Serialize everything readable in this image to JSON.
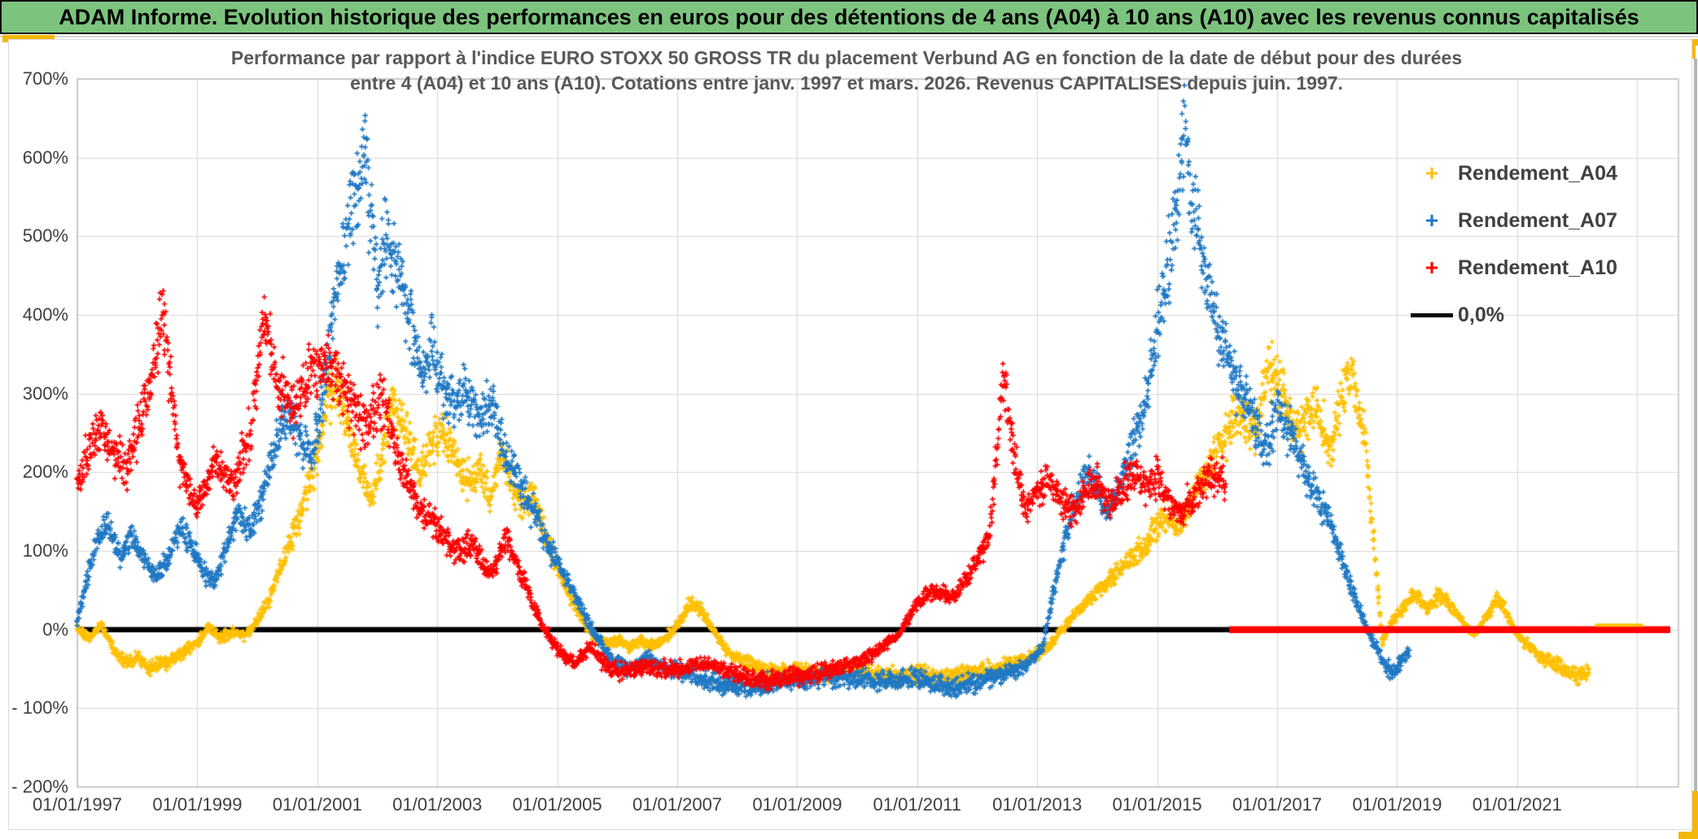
{
  "banner": {
    "title": "ADAM Informe. Evolution historique des performances en euros pour des détentions de 4 ans (A04) à 10 ans (A10) avec les revenus connus capitalisés"
  },
  "palette": {
    "banner_green": "#7CC47E",
    "accent_gold": "#F2B70A",
    "grid_gray": "#D9D9D9",
    "border_gray": "#BFBFBF",
    "text_gray": "#3F3F3F",
    "title_gray": "#595959"
  },
  "chart_data": {
    "type": "scatter",
    "title_line1": "Performance par rapport à l'indice EURO STOXX 50 GROSS TR  du placement Verbund AG en fonction de la date de début pour des durées",
    "title_line2": "entre 4 (A04) et 10 ans (A10). Cotations entre janv. 1997 et mars. 2026. Revenus CAPITALISES depuis juin. 1997.",
    "grid": true,
    "legend_position": "inside-right-top",
    "y_axis": {
      "unit": "%",
      "min": -200,
      "max": 700,
      "step": 100,
      "tick_labels": [
        "700%",
        "600%",
        "500%",
        "400%",
        "300%",
        "200%",
        "100%",
        "0%",
        "- 100%",
        "- 200%"
      ]
    },
    "x_axis": {
      "first_year": 1997,
      "years_per_tick": 2,
      "axis_end_year": 2023.7,
      "tick_labels": [
        "01/01/1997",
        "01/01/1999",
        "01/01/2001",
        "01/01/2003",
        "01/01/2005",
        "01/01/2007",
        "01/01/2009",
        "01/01/2011",
        "01/01/2013",
        "01/01/2015",
        "01/01/2017",
        "01/01/2019",
        "01/01/2021"
      ],
      "gridline_years": [
        1997,
        1999,
        2001,
        2003,
        2005,
        2007,
        2009,
        2011,
        2013,
        2015,
        2017,
        2019,
        2021,
        2023
      ]
    },
    "legend": [
      {
        "label": "Rendement_A04",
        "marker": "plus-icon",
        "color": "#FFC000"
      },
      {
        "label": "Rendement_A07",
        "marker": "plus-icon",
        "color": "#1F78C4"
      },
      {
        "label": "Rendement_A10",
        "marker": "plus-icon",
        "color": "#FF0000"
      },
      {
        "label": "0,0%",
        "marker": "line-icon",
        "color": "#000000"
      }
    ],
    "zero_line": {
      "label": "0,0%",
      "color": "#000000",
      "value": 0,
      "start": 1997.0,
      "end": 2023.55
    },
    "series": [
      {
        "name": "Rendement_A04",
        "color": "#FFC000",
        "marker": "+",
        "zero_placeholder": {
          "start": 2022.3,
          "end": 2023.1
        },
        "keypoints": [
          [
            1997.0,
            2
          ],
          [
            1997.2,
            -12
          ],
          [
            1997.4,
            6
          ],
          [
            1997.6,
            -25
          ],
          [
            1997.8,
            -42
          ],
          [
            1998.0,
            -35
          ],
          [
            1998.2,
            -50
          ],
          [
            1998.5,
            -40
          ],
          [
            1998.8,
            -28
          ],
          [
            1999.0,
            -15
          ],
          [
            1999.2,
            4
          ],
          [
            1999.4,
            -12
          ],
          [
            1999.6,
            -2
          ],
          [
            1999.8,
            -8
          ],
          [
            2000.0,
            12
          ],
          [
            2000.2,
            40
          ],
          [
            2000.4,
            80
          ],
          [
            2000.6,
            125
          ],
          [
            2000.8,
            165
          ],
          [
            2001.0,
            225
          ],
          [
            2001.2,
            295
          ],
          [
            2001.35,
            308
          ],
          [
            2001.5,
            255
          ],
          [
            2001.7,
            205
          ],
          [
            2001.9,
            162
          ],
          [
            2002.1,
            230
          ],
          [
            2002.25,
            295
          ],
          [
            2002.4,
            268
          ],
          [
            2002.55,
            235
          ],
          [
            2002.7,
            200
          ],
          [
            2002.9,
            232
          ],
          [
            2003.1,
            252
          ],
          [
            2003.3,
            222
          ],
          [
            2003.5,
            185
          ],
          [
            2003.7,
            205
          ],
          [
            2003.9,
            165
          ],
          [
            2004.05,
            230
          ],
          [
            2004.2,
            195
          ],
          [
            2004.4,
            160
          ],
          [
            2004.6,
            172
          ],
          [
            2004.8,
            120
          ],
          [
            2005.0,
            80
          ],
          [
            2005.2,
            45
          ],
          [
            2005.4,
            15
          ],
          [
            2005.6,
            -8
          ],
          [
            2005.8,
            -18
          ],
          [
            2006.0,
            -12
          ],
          [
            2006.2,
            -22
          ],
          [
            2006.4,
            -14
          ],
          [
            2006.6,
            -20
          ],
          [
            2006.8,
            -12
          ],
          [
            2007.0,
            5
          ],
          [
            2007.2,
            32
          ],
          [
            2007.4,
            25
          ],
          [
            2007.6,
            0
          ],
          [
            2007.8,
            -25
          ],
          [
            2008.0,
            -38
          ],
          [
            2008.3,
            -48
          ],
          [
            2008.6,
            -55
          ],
          [
            2009.0,
            -50
          ],
          [
            2009.4,
            -56
          ],
          [
            2009.8,
            -50
          ],
          [
            2010.2,
            -56
          ],
          [
            2010.6,
            -62
          ],
          [
            2011.0,
            -56
          ],
          [
            2011.4,
            -60
          ],
          [
            2011.8,
            -55
          ],
          [
            2012.2,
            -52
          ],
          [
            2012.6,
            -42
          ],
          [
            2013.0,
            -32
          ],
          [
            2013.3,
            -12
          ],
          [
            2013.6,
            18
          ],
          [
            2014.0,
            48
          ],
          [
            2014.4,
            78
          ],
          [
            2014.8,
            108
          ],
          [
            2015.1,
            148
          ],
          [
            2015.35,
            128
          ],
          [
            2015.6,
            168
          ],
          [
            2015.85,
            205
          ],
          [
            2016.1,
            240
          ],
          [
            2016.3,
            280
          ],
          [
            2016.6,
            250
          ],
          [
            2016.9,
            335
          ],
          [
            2017.1,
            298
          ],
          [
            2017.3,
            255
          ],
          [
            2017.6,
            285
          ],
          [
            2017.9,
            235
          ],
          [
            2018.1,
            300
          ],
          [
            2018.25,
            328
          ],
          [
            2018.45,
            250
          ],
          [
            2018.6,
            120
          ],
          [
            2018.75,
            -15
          ],
          [
            2018.9,
            8
          ],
          [
            2019.1,
            28
          ],
          [
            2019.3,
            45
          ],
          [
            2019.5,
            25
          ],
          [
            2019.7,
            45
          ],
          [
            2019.9,
            30
          ],
          [
            2020.1,
            8
          ],
          [
            2020.3,
            -6
          ],
          [
            2020.5,
            18
          ],
          [
            2020.7,
            40
          ],
          [
            2020.9,
            8
          ],
          [
            2021.1,
            -16
          ],
          [
            2021.4,
            -35
          ],
          [
            2021.7,
            -46
          ],
          [
            2022.0,
            -58
          ],
          [
            2022.2,
            -55
          ]
        ]
      },
      {
        "name": "Rendement_A07",
        "color": "#1F78C4",
        "marker": "+",
        "keypoints": [
          [
            1997.0,
            10
          ],
          [
            1997.15,
            60
          ],
          [
            1997.3,
            105
          ],
          [
            1997.5,
            135
          ],
          [
            1997.7,
            95
          ],
          [
            1997.9,
            120
          ],
          [
            1998.1,
            90
          ],
          [
            1998.3,
            65
          ],
          [
            1998.5,
            90
          ],
          [
            1998.7,
            130
          ],
          [
            1998.9,
            110
          ],
          [
            1999.1,
            75
          ],
          [
            1999.3,
            60
          ],
          [
            1999.5,
            110
          ],
          [
            1999.7,
            148
          ],
          [
            1999.9,
            128
          ],
          [
            2000.1,
            175
          ],
          [
            2000.3,
            235
          ],
          [
            2000.5,
            275
          ],
          [
            2000.7,
            250
          ],
          [
            2000.9,
            225
          ],
          [
            2001.1,
            305
          ],
          [
            2001.3,
            420
          ],
          [
            2001.5,
            500
          ],
          [
            2001.65,
            555
          ],
          [
            2001.79,
            628
          ],
          [
            2001.9,
            520
          ],
          [
            2002.0,
            455
          ],
          [
            2002.15,
            500
          ],
          [
            2002.3,
            465
          ],
          [
            2002.45,
            425
          ],
          [
            2002.6,
            375
          ],
          [
            2002.75,
            325
          ],
          [
            2002.9,
            360
          ],
          [
            2003.1,
            300
          ],
          [
            2003.3,
            285
          ],
          [
            2003.5,
            305
          ],
          [
            2003.7,
            265
          ],
          [
            2003.9,
            285
          ],
          [
            2004.1,
            230
          ],
          [
            2004.3,
            195
          ],
          [
            2004.6,
            150
          ],
          [
            2004.9,
            100
          ],
          [
            2005.2,
            60
          ],
          [
            2005.55,
            5
          ],
          [
            2005.9,
            -38
          ],
          [
            2006.2,
            -52
          ],
          [
            2006.5,
            -35
          ],
          [
            2006.8,
            -48
          ],
          [
            2007.1,
            -55
          ],
          [
            2007.4,
            -62
          ],
          [
            2007.8,
            -70
          ],
          [
            2008.2,
            -74
          ],
          [
            2008.6,
            -68
          ],
          [
            2009.0,
            -64
          ],
          [
            2009.5,
            -60
          ],
          [
            2010.0,
            -62
          ],
          [
            2010.5,
            -66
          ],
          [
            2011.0,
            -60
          ],
          [
            2011.3,
            -70
          ],
          [
            2011.6,
            -74
          ],
          [
            2012.0,
            -66
          ],
          [
            2012.4,
            -58
          ],
          [
            2012.8,
            -48
          ],
          [
            2013.1,
            -20
          ],
          [
            2013.25,
            40
          ],
          [
            2013.4,
            90
          ],
          [
            2013.55,
            140
          ],
          [
            2013.7,
            170
          ],
          [
            2013.85,
            200
          ],
          [
            2014.0,
            185
          ],
          [
            2014.15,
            150
          ],
          [
            2014.3,
            165
          ],
          [
            2014.5,
            210
          ],
          [
            2014.7,
            260
          ],
          [
            2014.85,
            310
          ],
          [
            2015.0,
            380
          ],
          [
            2015.15,
            450
          ],
          [
            2015.3,
            510
          ],
          [
            2015.45,
            625
          ],
          [
            2015.6,
            545
          ],
          [
            2015.75,
            470
          ],
          [
            2015.9,
            420
          ],
          [
            2016.05,
            370
          ],
          [
            2016.2,
            340
          ],
          [
            2016.5,
            285
          ],
          [
            2016.8,
            230
          ],
          [
            2017.0,
            280
          ],
          [
            2017.2,
            250
          ],
          [
            2017.5,
            195
          ],
          [
            2017.8,
            150
          ],
          [
            2018.0,
            110
          ],
          [
            2018.2,
            60
          ],
          [
            2018.4,
            20
          ],
          [
            2018.6,
            -15
          ],
          [
            2018.8,
            -45
          ],
          [
            2018.95,
            -55
          ],
          [
            2019.1,
            -35
          ],
          [
            2019.2,
            -25
          ]
        ]
      },
      {
        "name": "Rendement_A10",
        "color": "#FF0000",
        "marker": "+",
        "zero_placeholder": {
          "start": 2016.2,
          "end": 2023.55
        },
        "keypoints": [
          [
            1997.0,
            185
          ],
          [
            1997.2,
            235
          ],
          [
            1997.4,
            255
          ],
          [
            1997.6,
            225
          ],
          [
            1997.8,
            205
          ],
          [
            1998.0,
            250
          ],
          [
            1998.2,
            300
          ],
          [
            1998.42,
            405
          ],
          [
            1998.55,
            320
          ],
          [
            1998.7,
            210
          ],
          [
            1999.0,
            155
          ],
          [
            1999.3,
            215
          ],
          [
            1999.6,
            180
          ],
          [
            1999.9,
            255
          ],
          [
            2000.1,
            395
          ],
          [
            2000.3,
            325
          ],
          [
            2000.6,
            280
          ],
          [
            2000.9,
            330
          ],
          [
            2001.2,
            340
          ],
          [
            2001.5,
            300
          ],
          [
            2001.8,
            255
          ],
          [
            2002.1,
            295
          ],
          [
            2002.4,
            205
          ],
          [
            2002.7,
            155
          ],
          [
            2003.0,
            130
          ],
          [
            2003.3,
            100
          ],
          [
            2003.6,
            110
          ],
          [
            2003.9,
            70
          ],
          [
            2004.15,
            115
          ],
          [
            2004.45,
            60
          ],
          [
            2004.75,
            5
          ],
          [
            2005.0,
            -25
          ],
          [
            2005.3,
            -45
          ],
          [
            2005.55,
            -20
          ],
          [
            2005.8,
            -45
          ],
          [
            2006.1,
            -55
          ],
          [
            2006.5,
            -48
          ],
          [
            2007.0,
            -50
          ],
          [
            2007.5,
            -42
          ],
          [
            2008.0,
            -58
          ],
          [
            2008.5,
            -65
          ],
          [
            2009.0,
            -60
          ],
          [
            2009.5,
            -52
          ],
          [
            2010.0,
            -42
          ],
          [
            2010.4,
            -25
          ],
          [
            2010.7,
            -5
          ],
          [
            2011.0,
            35
          ],
          [
            2011.3,
            50
          ],
          [
            2011.6,
            40
          ],
          [
            2011.9,
            75
          ],
          [
            2012.2,
            120
          ],
          [
            2012.45,
            325
          ],
          [
            2012.6,
            230
          ],
          [
            2012.8,
            150
          ],
          [
            2013.0,
            175
          ],
          [
            2013.2,
            195
          ],
          [
            2013.4,
            160
          ],
          [
            2013.6,
            145
          ],
          [
            2013.8,
            175
          ],
          [
            2014.0,
            190
          ],
          [
            2014.2,
            160
          ],
          [
            2014.4,
            175
          ],
          [
            2014.6,
            200
          ],
          [
            2014.8,
            180
          ],
          [
            2015.0,
            195
          ],
          [
            2015.2,
            160
          ],
          [
            2015.4,
            150
          ],
          [
            2015.6,
            165
          ],
          [
            2015.8,
            190
          ],
          [
            2016.0,
            200
          ],
          [
            2016.15,
            185
          ]
        ]
      }
    ]
  }
}
